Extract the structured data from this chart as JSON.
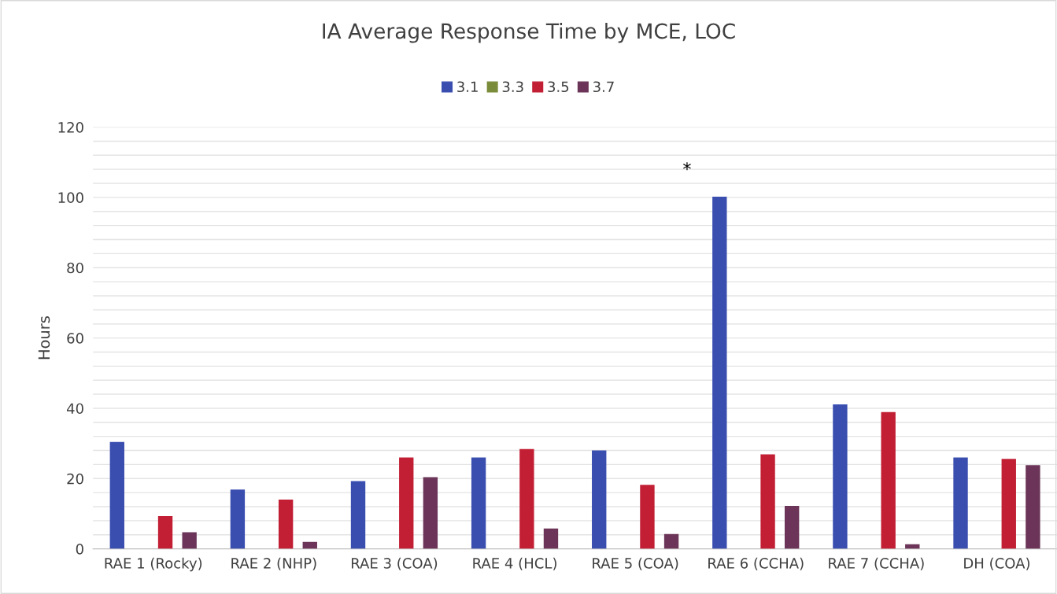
{
  "chart_data": {
    "type": "bar",
    "title": "IA Average Response Time by MCE, LOC",
    "ylabel": "Hours",
    "categories": [
      "RAE 1 (Rocky)",
      "RAE 2 (NHP)",
      "RAE 3 (COA)",
      "RAE 4 (HCL)",
      "RAE 5 (COA)",
      "RAE 6 (CCHA)",
      "RAE 7 (CCHA)",
      "DH (COA)"
    ],
    "series": [
      {
        "name": "3.1",
        "color": "#3a4eb0",
        "values": [
          30.4,
          16.9,
          19.3,
          26,
          28,
          100.2,
          41.1,
          26
        ]
      },
      {
        "name": "3.3",
        "color": "#7a8c3a",
        "values": [
          null,
          null,
          null,
          null,
          null,
          null,
          null,
          null
        ]
      },
      {
        "name": "3.5",
        "color": "#c21f35",
        "values": [
          9.3,
          14,
          26,
          28.4,
          18.2,
          26.9,
          38.9,
          25.6
        ]
      },
      {
        "name": "3.7",
        "color": "#6b3458",
        "values": [
          4.7,
          2,
          20.4,
          5.8,
          4.2,
          12.2,
          1.3,
          23.8
        ]
      }
    ],
    "ylim": [
      0,
      120
    ],
    "yticks": [
      0,
      {
        "value": 4,
        "label": null
      },
      {
        "value": 8,
        "label": null
      },
      {
        "value": 12,
        "label": null
      },
      {
        "value": 16,
        "label": null
      },
      20,
      {
        "value": 24,
        "label": null
      },
      {
        "value": 28,
        "label": null
      },
      {
        "value": 32,
        "label": null
      },
      {
        "value": 36,
        "label": null
      },
      40,
      {
        "value": 44,
        "label": null
      },
      {
        "value": 48,
        "label": null
      },
      {
        "value": 52,
        "label": null
      },
      {
        "value": 56,
        "label": null
      },
      60,
      {
        "value": 64,
        "label": null
      },
      {
        "value": 68,
        "label": null
      },
      {
        "value": 72,
        "label": null
      },
      {
        "value": 76,
        "label": null
      },
      80,
      {
        "value": 84,
        "label": null
      },
      {
        "value": 88,
        "label": null
      },
      {
        "value": 92,
        "label": null
      },
      {
        "value": 96,
        "label": null
      },
      100,
      {
        "value": 104,
        "label": null
      },
      {
        "value": 108,
        "label": null
      },
      {
        "value": 112,
        "label": null
      },
      {
        "value": 116,
        "label": null
      },
      120
    ],
    "grid": "y",
    "legend": "top",
    "annotations": [
      "*"
    ]
  }
}
